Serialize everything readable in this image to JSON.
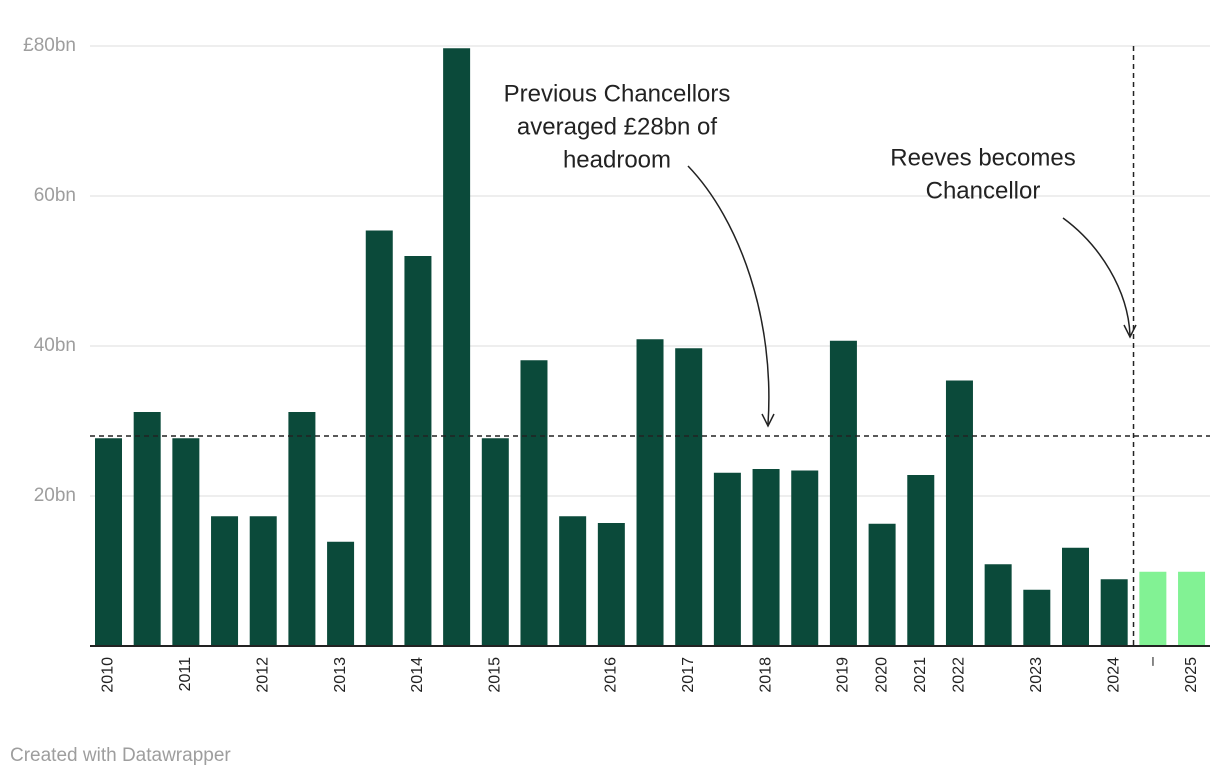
{
  "chart_data": {
    "type": "bar",
    "categories": [
      "2010",
      null,
      "2011",
      null,
      "2012",
      null,
      "2013",
      null,
      "2014",
      null,
      "2015",
      null,
      null,
      "2016",
      null,
      "2017",
      null,
      "2018",
      null,
      "2019",
      "2020",
      "2021",
      "2022",
      null,
      "2023",
      null,
      "2024",
      "–",
      "2025"
    ],
    "values": [
      27.7,
      31.2,
      27.7,
      17.3,
      17.3,
      31.2,
      13.9,
      55.4,
      52.0,
      79.7,
      27.7,
      38.1,
      17.3,
      16.4,
      40.9,
      39.7,
      23.1,
      23.6,
      23.4,
      40.7,
      16.3,
      22.8,
      35.4,
      10.9,
      7.5,
      13.1,
      8.9,
      9.9,
      9.9
    ],
    "colors": [
      "#0b4a3a",
      "#0b4a3a",
      "#0b4a3a",
      "#0b4a3a",
      "#0b4a3a",
      "#0b4a3a",
      "#0b4a3a",
      "#0b4a3a",
      "#0b4a3a",
      "#0b4a3a",
      "#0b4a3a",
      "#0b4a3a",
      "#0b4a3a",
      "#0b4a3a",
      "#0b4a3a",
      "#0b4a3a",
      "#0b4a3a",
      "#0b4a3a",
      "#0b4a3a",
      "#0b4a3a",
      "#0b4a3a",
      "#0b4a3a",
      "#0b4a3a",
      "#0b4a3a",
      "#0b4a3a",
      "#0b4a3a",
      "#0b4a3a",
      "#82f294",
      "#82f294"
    ],
    "ylim": [
      0,
      80
    ],
    "yticks": [
      {
        "value": 20,
        "label": "20bn"
      },
      {
        "value": 40,
        "label": "40bn"
      },
      {
        "value": 60,
        "label": "60bn"
      },
      {
        "value": 80,
        "label": "£80bn"
      }
    ],
    "grid": true,
    "reference_line": 28,
    "annotations": [
      {
        "lines": [
          "Previous Chancellors",
          "averaged £28bn of",
          "headroom"
        ]
      },
      {
        "lines": [
          "Reeves becomes",
          "Chancellor"
        ]
      }
    ],
    "footer": "Created with Datawrapper"
  }
}
